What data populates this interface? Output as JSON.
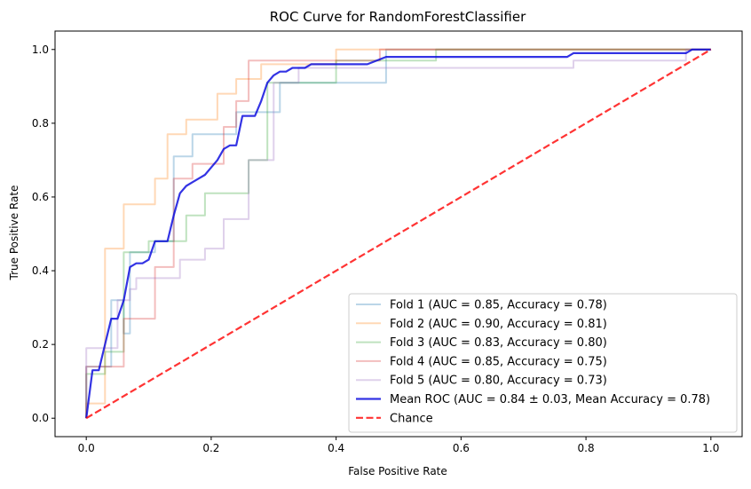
{
  "chart_data": {
    "type": "line",
    "title": "ROC Curve for RandomForestClassifier",
    "xlabel": "False Positive Rate",
    "ylabel": "True Positive Rate",
    "xlim": [
      -0.05,
      1.05
    ],
    "ylim": [
      -0.05,
      1.05
    ],
    "xticks": [
      0.0,
      0.2,
      0.4,
      0.6,
      0.8,
      1.0
    ],
    "xtick_labels": [
      "0.0",
      "0.2",
      "0.4",
      "0.6",
      "0.8",
      "1.0"
    ],
    "yticks": [
      0.0,
      0.2,
      0.4,
      0.6,
      0.8,
      1.0
    ],
    "ytick_labels": [
      "0.0",
      "0.2",
      "0.4",
      "0.6",
      "0.8",
      "1.0"
    ],
    "grid": false,
    "legend_position": "lower right",
    "series": [
      {
        "name": "Fold 1 (AUC = 0.85, Accuracy = 0.78)",
        "color": "#1f77b4",
        "opacity": 0.3,
        "line_style": "solid",
        "x": [
          0,
          0,
          0.04,
          0.04,
          0.06,
          0.06,
          0.07,
          0.07,
          0.11,
          0.11,
          0.14,
          0.14,
          0.17,
          0.17,
          0.24,
          0.24,
          0.27,
          0.27,
          0.31,
          0.31,
          0.48,
          0.48,
          1.0
        ],
        "y": [
          0,
          0.14,
          0.14,
          0.32,
          0.32,
          0.23,
          0.23,
          0.45,
          0.45,
          0.48,
          0.48,
          0.71,
          0.71,
          0.77,
          0.77,
          0.83,
          0.83,
          0.83,
          0.83,
          0.91,
          0.91,
          1.0,
          1.0
        ]
      },
      {
        "name": "Fold 2 (AUC = 0.90, Accuracy = 0.81)",
        "color": "#ff7f0e",
        "opacity": 0.3,
        "line_style": "solid",
        "x": [
          0,
          0,
          0.03,
          0.03,
          0.06,
          0.06,
          0.11,
          0.11,
          0.13,
          0.13,
          0.16,
          0.16,
          0.21,
          0.21,
          0.24,
          0.24,
          0.28,
          0.28,
          0.4,
          0.4,
          1.0
        ],
        "y": [
          0,
          0.04,
          0.04,
          0.46,
          0.46,
          0.58,
          0.58,
          0.65,
          0.65,
          0.77,
          0.77,
          0.81,
          0.81,
          0.88,
          0.88,
          0.92,
          0.92,
          0.96,
          0.96,
          1.0,
          1.0
        ]
      },
      {
        "name": "Fold 3 (AUC = 0.83, Accuracy = 0.80)",
        "color": "#2ca02c",
        "opacity": 0.3,
        "line_style": "solid",
        "x": [
          0,
          0,
          0.03,
          0.03,
          0.06,
          0.06,
          0.07,
          0.07,
          0.1,
          0.1,
          0.16,
          0.16,
          0.19,
          0.19,
          0.26,
          0.26,
          0.29,
          0.29,
          0.4,
          0.4,
          0.56,
          0.56,
          1.0
        ],
        "y": [
          0,
          0.12,
          0.12,
          0.18,
          0.18,
          0.45,
          0.45,
          0.45,
          0.45,
          0.48,
          0.48,
          0.55,
          0.55,
          0.61,
          0.61,
          0.7,
          0.7,
          0.91,
          0.91,
          0.97,
          0.97,
          1.0,
          1.0
        ]
      },
      {
        "name": "Fold 4 (AUC = 0.85, Accuracy = 0.75)",
        "color": "#d62728",
        "opacity": 0.3,
        "line_style": "solid",
        "x": [
          0,
          0,
          0.06,
          0.06,
          0.08,
          0.08,
          0.11,
          0.11,
          0.14,
          0.14,
          0.17,
          0.17,
          0.22,
          0.22,
          0.24,
          0.24,
          0.26,
          0.26,
          0.35,
          0.35,
          0.47,
          0.47,
          1.0
        ],
        "y": [
          0,
          0.14,
          0.14,
          0.27,
          0.27,
          0.27,
          0.27,
          0.41,
          0.41,
          0.65,
          0.65,
          0.69,
          0.69,
          0.79,
          0.79,
          0.86,
          0.86,
          0.97,
          0.97,
          0.97,
          0.97,
          1.0,
          1.0
        ]
      },
      {
        "name": "Fold 5 (AUC = 0.80, Accuracy = 0.73)",
        "color": "#9467bd",
        "opacity": 0.3,
        "line_style": "solid",
        "x": [
          0,
          0,
          0.05,
          0.05,
          0.07,
          0.07,
          0.08,
          0.08,
          0.11,
          0.11,
          0.15,
          0.15,
          0.19,
          0.19,
          0.22,
          0.22,
          0.26,
          0.26,
          0.3,
          0.3,
          0.34,
          0.34,
          0.78,
          0.78,
          0.96,
          0.96,
          1.0
        ],
        "y": [
          0,
          0.19,
          0.19,
          0.32,
          0.32,
          0.35,
          0.35,
          0.38,
          0.38,
          0.38,
          0.38,
          0.43,
          0.43,
          0.46,
          0.46,
          0.54,
          0.54,
          0.7,
          0.7,
          0.91,
          0.91,
          0.95,
          0.95,
          0.97,
          0.97,
          1.0,
          1.0
        ]
      },
      {
        "name": "Mean ROC (AUC = 0.84 ± 0.03, Mean Accuracy = 0.78)",
        "color": "#0000dd",
        "opacity": 0.8,
        "line_style": "solid",
        "x": [
          0,
          0.01,
          0.02,
          0.03,
          0.04,
          0.05,
          0.06,
          0.07,
          0.08,
          0.09,
          0.1,
          0.11,
          0.12,
          0.13,
          0.14,
          0.15,
          0.16,
          0.17,
          0.18,
          0.19,
          0.2,
          0.21,
          0.22,
          0.23,
          0.24,
          0.25,
          0.26,
          0.27,
          0.28,
          0.29,
          0.3,
          0.31,
          0.32,
          0.33,
          0.34,
          0.35,
          0.36,
          0.38,
          0.4,
          0.45,
          0.48,
          0.5,
          0.6,
          0.7,
          0.77,
          0.78,
          0.9,
          0.96,
          0.97,
          1.0
        ],
        "y": [
          0,
          0.13,
          0.13,
          0.2,
          0.27,
          0.27,
          0.32,
          0.41,
          0.42,
          0.42,
          0.43,
          0.48,
          0.48,
          0.48,
          0.55,
          0.61,
          0.63,
          0.64,
          0.65,
          0.66,
          0.68,
          0.7,
          0.73,
          0.74,
          0.74,
          0.82,
          0.82,
          0.82,
          0.86,
          0.91,
          0.93,
          0.94,
          0.94,
          0.95,
          0.95,
          0.95,
          0.96,
          0.96,
          0.96,
          0.96,
          0.98,
          0.98,
          0.98,
          0.98,
          0.98,
          0.99,
          0.99,
          0.99,
          1.0,
          1.0
        ]
      },
      {
        "name": "Chance",
        "color": "#ff0000",
        "opacity": 0.8,
        "line_style": "dashed",
        "x": [
          0,
          1
        ],
        "y": [
          0,
          1
        ]
      }
    ]
  }
}
